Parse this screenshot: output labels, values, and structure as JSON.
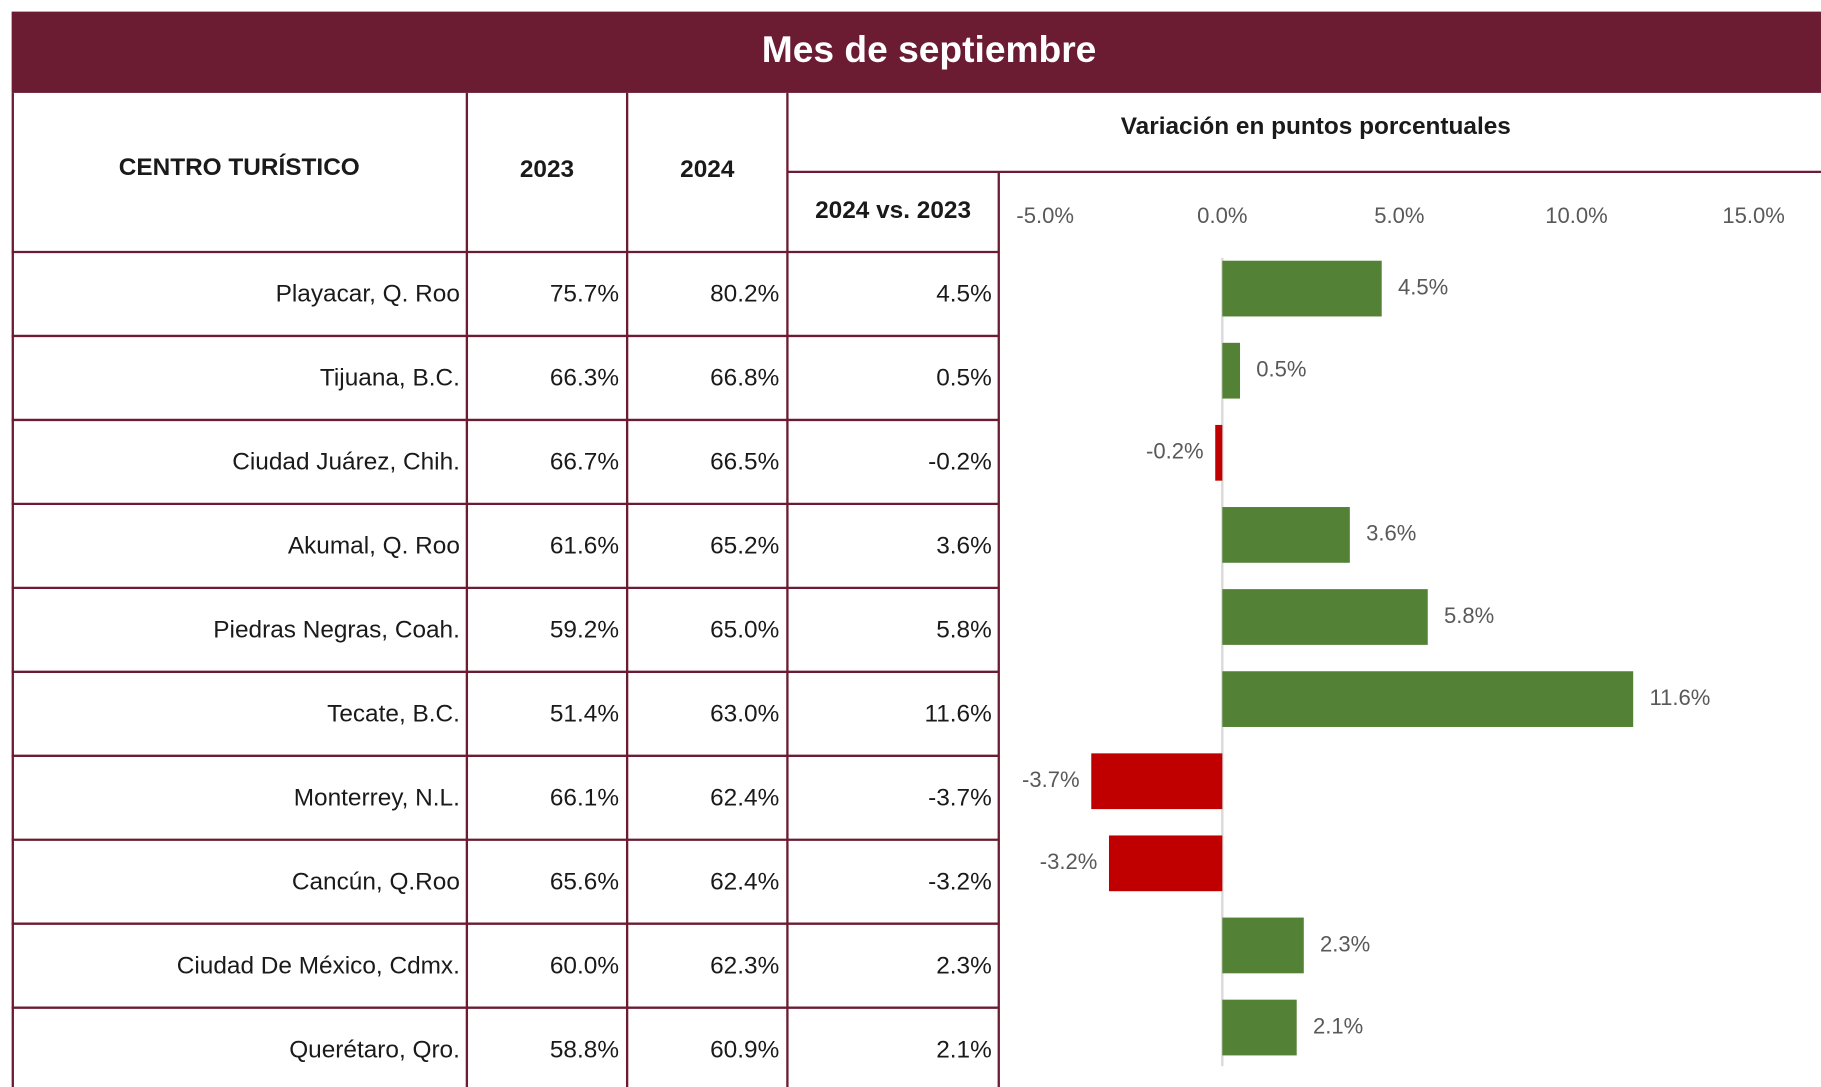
{
  "title": "Mes de septiembre",
  "table": {
    "headers": [
      "CENTRO TURÍSTICO",
      "2023",
      "2024"
    ],
    "group_header": "Variación en puntos porcentuales",
    "subheader": "2024 vs. 2023",
    "rows": [
      [
        "75.7%",
        "80.2%"
      ],
      [
        "66.3%",
        "66.8%"
      ],
      [
        "66.7%",
        "66.5%"
      ],
      [
        "61.6%",
        "65.2%"
      ],
      [
        "59.2%",
        "65.0%"
      ],
      [
        "51.4%",
        "63.0%"
      ],
      [
        "66.1%",
        "62.4%"
      ],
      [
        "65.6%",
        "62.4%"
      ],
      [
        "60.0%",
        "62.3%"
      ],
      [
        "58.8%",
        "60.9%"
      ]
    ]
  },
  "chart_data": {
    "type": "bar",
    "orientation": "horizontal",
    "categories": [
      "Playacar, Q. Roo",
      "Tijuana, B.C.",
      "Ciudad Juárez, Chih.",
      "Akumal, Q. Roo",
      "Piedras Negras, Coah.",
      "Tecate, B.C.",
      "Monterrey, N.L.",
      "Cancún, Q.Roo",
      "Ciudad De México, Cdmx.",
      "Querétaro, Qro."
    ],
    "values": [
      4.5,
      0.5,
      -0.2,
      3.6,
      5.8,
      11.6,
      -3.7,
      -3.2,
      2.3,
      2.1
    ],
    "value_labels": [
      "4.5%",
      "0.5%",
      "-0.2%",
      "3.6%",
      "5.8%",
      "11.6%",
      "-3.7%",
      "-3.2%",
      "2.3%",
      "2.1%"
    ],
    "positive_color": "#538135",
    "negative_color": "#c00000",
    "xlim": [
      -5,
      15
    ],
    "xticks": [
      {
        "value": -5,
        "label": "-5.0%"
      },
      {
        "value": 0,
        "label": "0.0%"
      },
      {
        "value": 5,
        "label": "5.0%"
      },
      {
        "value": 10,
        "label": "10.0%"
      },
      {
        "value": 15,
        "label": "15.0%"
      }
    ]
  }
}
